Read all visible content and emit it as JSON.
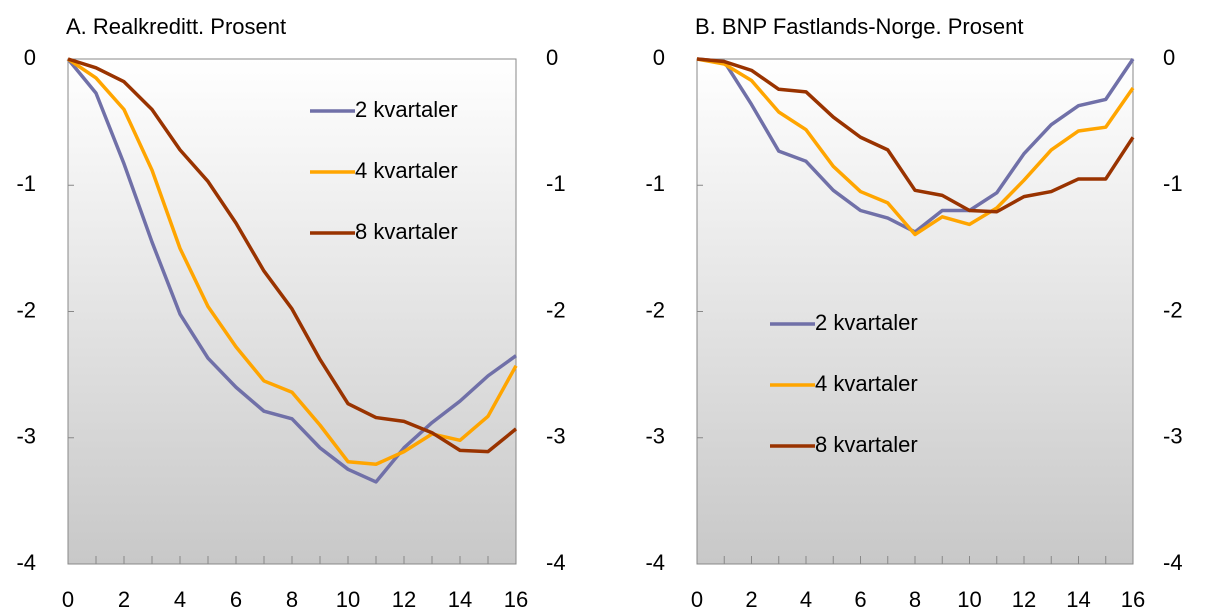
{
  "chart_data": [
    {
      "type": "line",
      "title": "A. Realkreditt. Prosent",
      "x": [
        0,
        1,
        2,
        3,
        4,
        5,
        6,
        7,
        8,
        9,
        10,
        11,
        12,
        13,
        14,
        15,
        16
      ],
      "xlim": [
        0,
        16
      ],
      "xticks": [
        0,
        2,
        4,
        6,
        8,
        10,
        12,
        14,
        16
      ],
      "ylim": [
        -4,
        0
      ],
      "yticks": [
        0,
        -1,
        -2,
        -3,
        -4
      ],
      "legend": "upper right",
      "series": [
        {
          "name": "2 kvartaler",
          "color": "#7070a8",
          "values": [
            0,
            -0.27,
            -0.83,
            -1.45,
            -2.02,
            -2.37,
            -2.6,
            -2.79,
            -2.85,
            -3.08,
            -3.25,
            -3.35,
            -3.08,
            -2.88,
            -2.71,
            -2.51,
            -2.35
          ]
        },
        {
          "name": "4 kvartaler",
          "color": "#ffa500",
          "values": [
            0,
            -0.15,
            -0.4,
            -0.88,
            -1.5,
            -1.96,
            -2.28,
            -2.55,
            -2.64,
            -2.9,
            -3.19,
            -3.21,
            -3.11,
            -2.97,
            -3.02,
            -2.83,
            -2.43
          ]
        },
        {
          "name": "8 kvartaler",
          "color": "#993300",
          "values": [
            0,
            -0.07,
            -0.18,
            -0.4,
            -0.72,
            -0.97,
            -1.3,
            -1.68,
            -1.98,
            -2.38,
            -2.73,
            -2.84,
            -2.87,
            -2.96,
            -3.1,
            -3.11,
            -2.93
          ]
        }
      ]
    },
    {
      "type": "line",
      "title": "B. BNP Fastlands-Norge. Prosent",
      "x": [
        0,
        1,
        2,
        3,
        4,
        5,
        6,
        7,
        8,
        9,
        10,
        11,
        12,
        13,
        14,
        15,
        16
      ],
      "xlim": [
        0,
        16
      ],
      "xticks": [
        0,
        2,
        4,
        6,
        8,
        10,
        12,
        14,
        16
      ],
      "ylim": [
        -4,
        0
      ],
      "yticks": [
        0,
        -1,
        -2,
        -3,
        -4
      ],
      "legend": "lower left",
      "series": [
        {
          "name": "2 kvartaler",
          "color": "#7070a8",
          "values": [
            0,
            -0.02,
            -0.36,
            -0.73,
            -0.81,
            -1.04,
            -1.2,
            -1.26,
            -1.37,
            -1.2,
            -1.2,
            -1.06,
            -0.75,
            -0.52,
            -0.37,
            -0.32,
            0
          ]
        },
        {
          "name": "4 kvartaler",
          "color": "#ffa500",
          "values": [
            0,
            -0.04,
            -0.17,
            -0.42,
            -0.56,
            -0.85,
            -1.05,
            -1.14,
            -1.39,
            -1.25,
            -1.31,
            -1.18,
            -0.96,
            -0.72,
            -0.57,
            -0.54,
            -0.23
          ]
        },
        {
          "name": "8 kvartaler",
          "color": "#993300",
          "values": [
            0,
            -0.02,
            -0.09,
            -0.24,
            -0.26,
            -0.46,
            -0.62,
            -0.72,
            -1.04,
            -1.08,
            -1.2,
            -1.21,
            -1.09,
            -1.05,
            -0.95,
            -0.95,
            -0.62
          ]
        }
      ]
    }
  ]
}
